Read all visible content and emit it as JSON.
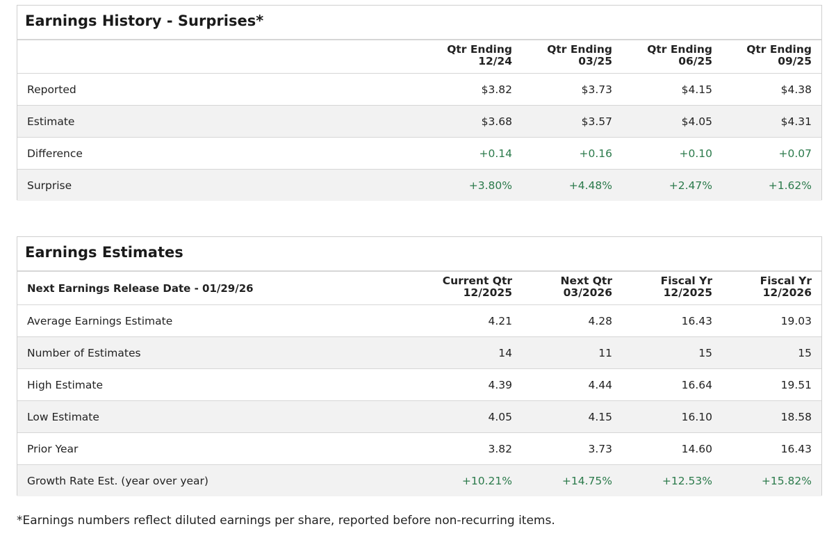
{
  "history": {
    "title": "Earnings History - Surprises*",
    "subheader": null,
    "columns": [
      [
        "Qtr Ending",
        "12/24"
      ],
      [
        "Qtr Ending",
        "03/25"
      ],
      [
        "Qtr Ending",
        "06/25"
      ],
      [
        "Qtr Ending",
        "09/25"
      ]
    ],
    "rows": [
      {
        "label": "Reported",
        "cells": [
          "$3.82",
          "$3.73",
          "$4.15",
          "$4.38"
        ]
      },
      {
        "label": "Estimate",
        "cells": [
          "$3.68",
          "$3.57",
          "$4.05",
          "$4.31"
        ]
      },
      {
        "label": "Difference",
        "cells": [
          "+0.14",
          "+0.16",
          "+0.10",
          "+0.07"
        ],
        "color": "#2b7a4b"
      },
      {
        "label": "Surprise",
        "cells": [
          "+3.80%",
          "+4.48%",
          "+2.47%",
          "+1.62%"
        ],
        "color": "#2b7a4b"
      }
    ]
  },
  "estimates": {
    "title": "Earnings Estimates",
    "subheader": "Next Earnings Release Date - 01/29/26",
    "columns": [
      [
        "Current Qtr",
        "12/2025"
      ],
      [
        "Next Qtr",
        "03/2026"
      ],
      [
        "Fiscal Yr",
        "12/2025"
      ],
      [
        "Fiscal Yr",
        "12/2026"
      ]
    ],
    "rows": [
      {
        "label": "Average Earnings Estimate",
        "cells": [
          "4.21",
          "4.28",
          "16.43",
          "19.03"
        ]
      },
      {
        "label": "Number of Estimates",
        "cells": [
          "14",
          "11",
          "15",
          "15"
        ]
      },
      {
        "label": "High Estimate",
        "cells": [
          "4.39",
          "4.44",
          "16.64",
          "19.51"
        ]
      },
      {
        "label": "Low Estimate",
        "cells": [
          "4.05",
          "4.15",
          "16.10",
          "18.58"
        ]
      },
      {
        "label": "Prior Year",
        "cells": [
          "3.82",
          "3.73",
          "14.60",
          "16.43"
        ]
      },
      {
        "label": "Growth Rate Est. (year over year)",
        "cells": [
          "+10.21%",
          "+14.75%",
          "+12.53%",
          "+15.82%"
        ],
        "color": "#2b7a4b"
      }
    ]
  },
  "footnote": "*Earnings numbers reflect diluted earnings per share, reported before non-recurring items."
}
